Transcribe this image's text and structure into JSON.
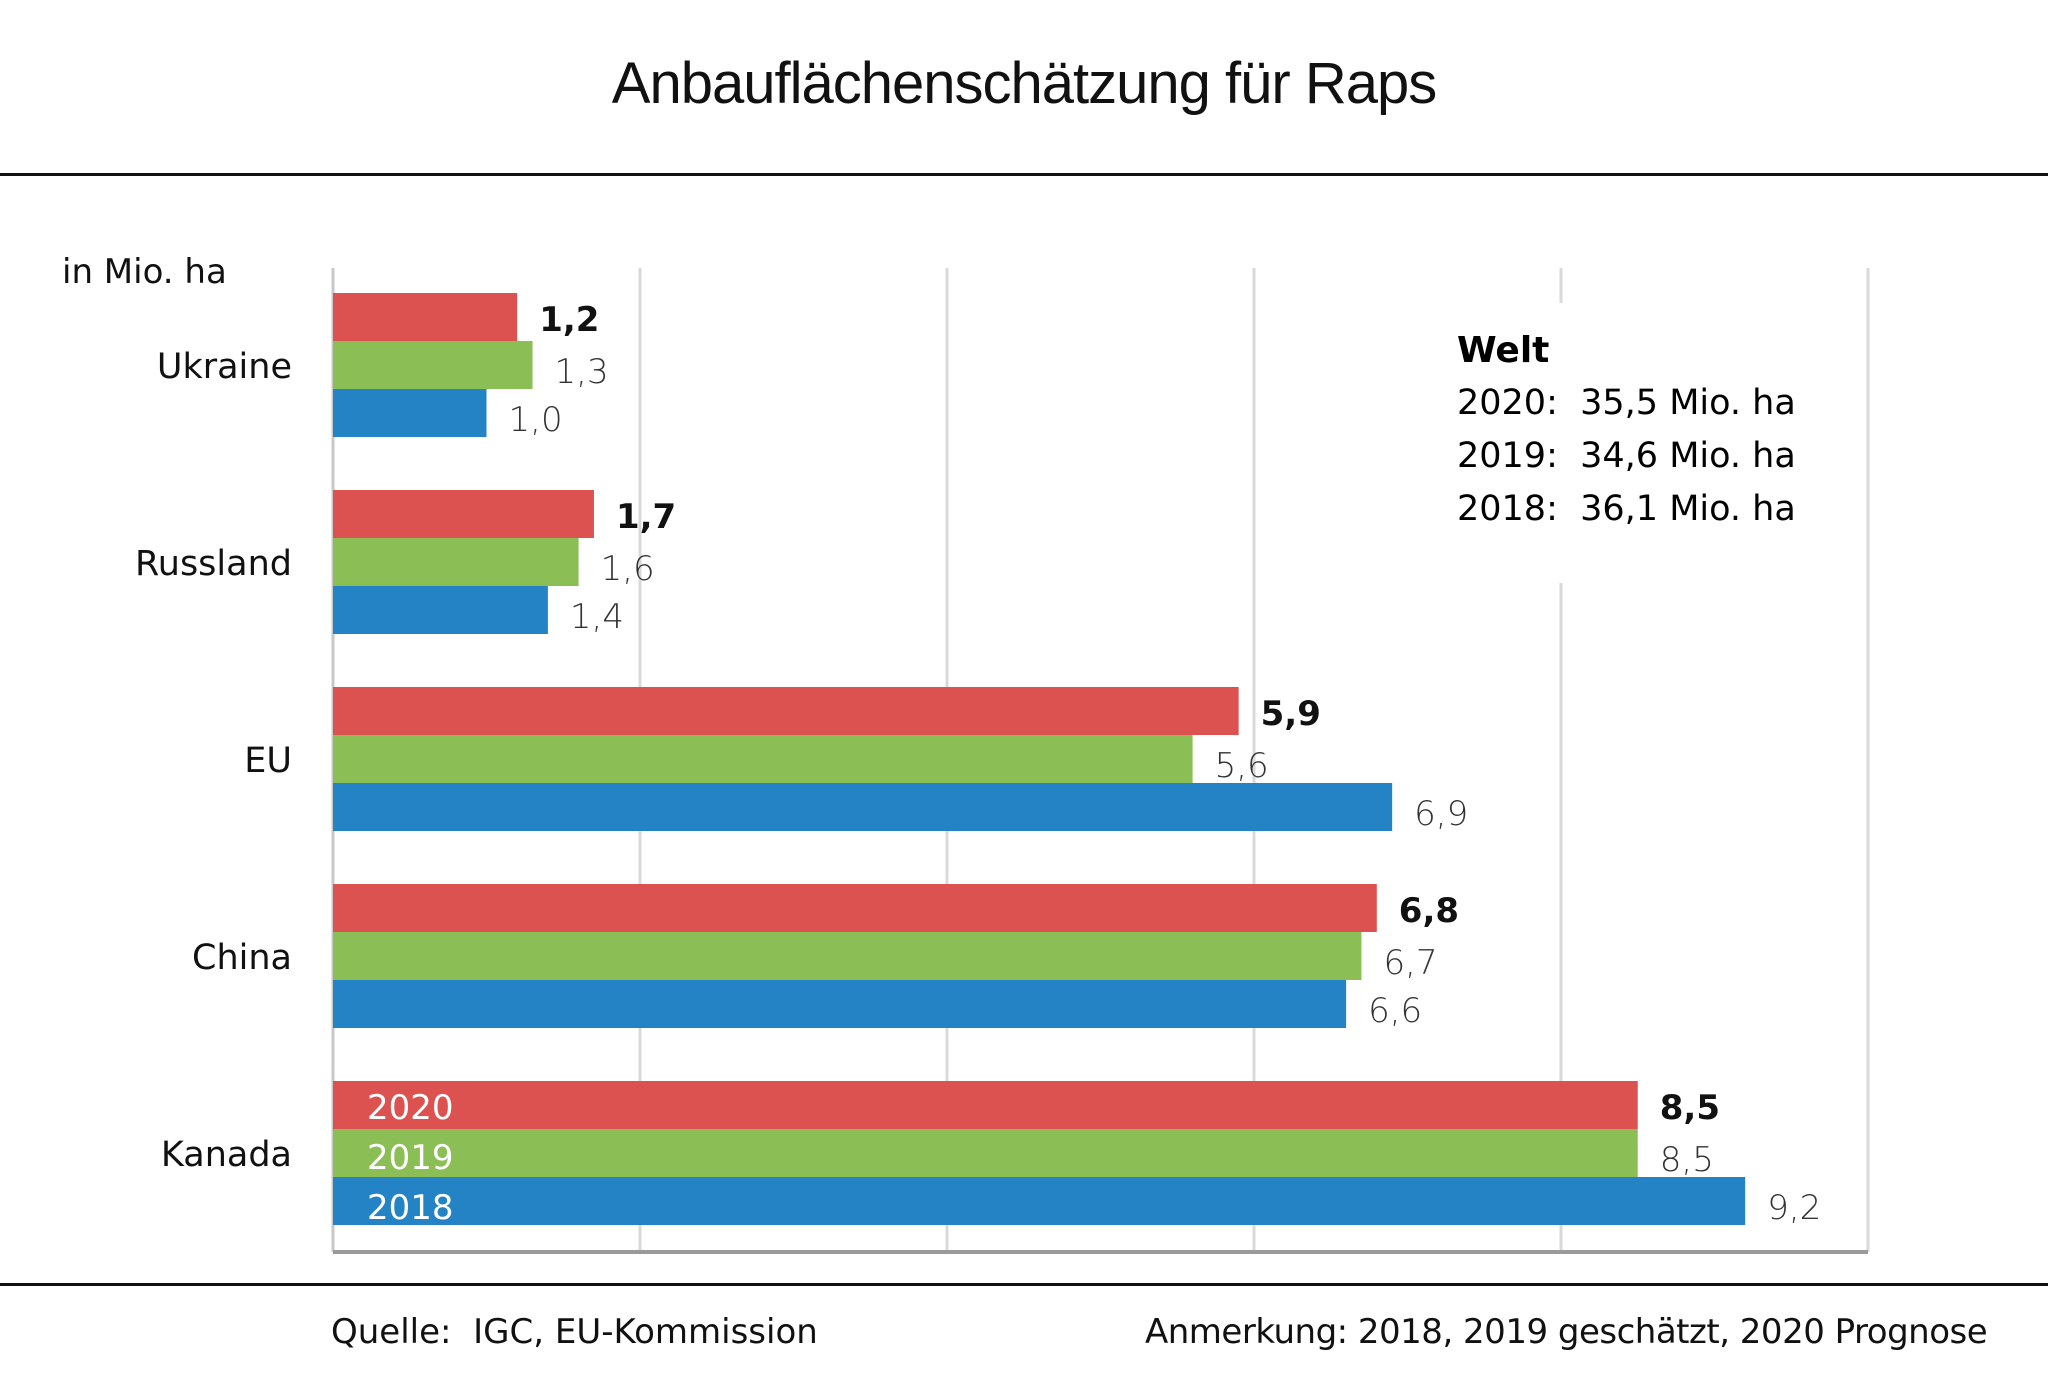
{
  "page": {
    "title": "Anbauflächenschätzung  für Raps",
    "unit_label": "in Mio. ha",
    "source": "Quelle:  IGC, EU-Kommission",
    "note": "Anmerkung: 2018, 2019 geschätzt, 2020 Prognose"
  },
  "welt_box": {
    "title": "Welt",
    "rows": [
      {
        "year": "2020:",
        "value": "35,5 Mio. ha"
      },
      {
        "year": "2019:",
        "value": "34,6 Mio. ha"
      },
      {
        "year": "2018:",
        "value": "36,1 Mio. ha"
      }
    ]
  },
  "chart_data": {
    "type": "bar",
    "orientation": "horizontal",
    "title": "Anbauflächenschätzung für Raps",
    "xlabel": "",
    "ylabel": "in Mio. ha",
    "xlim": [
      0,
      10
    ],
    "gridlines_at": [
      0,
      2,
      4,
      6,
      8,
      10
    ],
    "tick_labels_shown": false,
    "grid": true,
    "legend": "inline-in-bars (Kanada group)",
    "categories": [
      "Ukraine",
      "Russland",
      "EU",
      "China",
      "Kanada"
    ],
    "series": [
      {
        "name": "2020",
        "color": "#DC5250",
        "label_bold": true,
        "values": [
          1.2,
          1.7,
          5.9,
          6.8,
          8.5
        ],
        "labels": [
          "1,2",
          "1,7",
          "5,9",
          "6,8",
          "8,5"
        ]
      },
      {
        "name": "2019",
        "color": "#8BBE55",
        "label_bold": false,
        "values": [
          1.3,
          1.6,
          5.6,
          6.7,
          8.5
        ],
        "labels": [
          "1,3",
          "1,6",
          "5,6",
          "6,7",
          "8,5"
        ]
      },
      {
        "name": "2018",
        "color": "#2383C4",
        "label_bold": false,
        "values": [
          1.0,
          1.4,
          6.9,
          6.6,
          9.2
        ],
        "labels": [
          "1,0",
          "1,4",
          "6,9",
          "6,6",
          "9,2"
        ]
      }
    ],
    "world_totals": {
      "2020": 35.5,
      "2019": 34.6,
      "2018": 36.1
    },
    "source": "IGC, EU-Kommission",
    "annotation": "2018, 2019 geschätzt, 2020 Prognose"
  }
}
